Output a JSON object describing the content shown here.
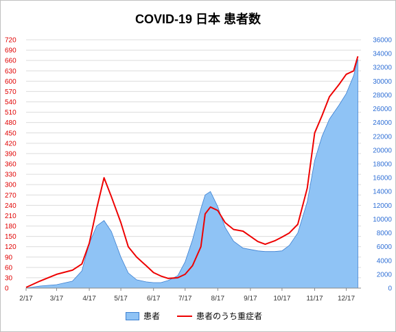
{
  "chart_data": {
    "type": "area",
    "title": "COVID-19 日本 患者数",
    "x_ticks": [
      "2/17",
      "3/17",
      "4/17",
      "5/17",
      "6/17",
      "7/17",
      "8/17",
      "9/17",
      "10/17",
      "11/17",
      "12/17"
    ],
    "y_left": {
      "ticks": [
        0,
        30,
        60,
        90,
        120,
        150,
        180,
        210,
        240,
        270,
        300,
        330,
        360,
        390,
        420,
        450,
        480,
        510,
        540,
        570,
        600,
        630,
        660,
        690,
        720
      ],
      "ylim": [
        0,
        720
      ]
    },
    "y_right": {
      "ticks": [
        0,
        2000,
        4000,
        6000,
        8000,
        10000,
        12000,
        14000,
        16000,
        18000,
        20000,
        22000,
        24000,
        26000,
        28000,
        30000,
        32000,
        34000,
        36000
      ],
      "ylim": [
        0,
        36000
      ]
    },
    "grid": true,
    "legend_position": "bottom",
    "series": [
      {
        "name": "患者",
        "axis": "right",
        "type": "area",
        "color": "#8fc3f5",
        "edge_color": "#3b7fd1",
        "x": [
          "2/17",
          "3/1",
          "3/17",
          "4/1",
          "4/10",
          "4/17",
          "4/24",
          "5/1",
          "5/8",
          "5/17",
          "5/24",
          "6/1",
          "6/10",
          "6/17",
          "6/24",
          "7/1",
          "7/10",
          "7/17",
          "7/24",
          "8/1",
          "8/5",
          "8/10",
          "8/17",
          "8/24",
          "9/1",
          "9/10",
          "9/17",
          "9/24",
          "10/1",
          "10/10",
          "10/17",
          "10/24",
          "11/1",
          "11/10",
          "11/17",
          "11/24",
          "12/1",
          "12/10",
          "12/17",
          "12/24",
          "12/28"
        ],
        "y": [
          0,
          300,
          500,
          1000,
          2500,
          6500,
          9000,
          9800,
          8200,
          4500,
          2200,
          1200,
          900,
          800,
          800,
          1100,
          1800,
          3800,
          7000,
          11500,
          13500,
          14000,
          11800,
          8800,
          6800,
          5800,
          5600,
          5400,
          5300,
          5300,
          5400,
          6200,
          8000,
          12500,
          18500,
          22000,
          24500,
          26500,
          28200,
          30800,
          33200
        ]
      },
      {
        "name": "患者のうち重症者",
        "axis": "left",
        "type": "line",
        "color": "#ee0000",
        "x": [
          "2/17",
          "3/1",
          "3/17",
          "4/1",
          "4/10",
          "4/17",
          "4/24",
          "5/1",
          "5/8",
          "5/17",
          "5/24",
          "6/1",
          "6/10",
          "6/17",
          "6/24",
          "7/1",
          "7/10",
          "7/17",
          "7/24",
          "8/1",
          "8/5",
          "8/10",
          "8/17",
          "8/24",
          "9/1",
          "9/10",
          "9/17",
          "9/24",
          "10/1",
          "10/10",
          "10/17",
          "10/24",
          "11/1",
          "11/10",
          "11/17",
          "11/24",
          "12/1",
          "12/10",
          "12/17",
          "12/24",
          "12/28"
        ],
        "y": [
          2,
          20,
          40,
          52,
          70,
          130,
          230,
          320,
          265,
          190,
          120,
          90,
          65,
          45,
          35,
          28,
          30,
          40,
          65,
          120,
          215,
          235,
          225,
          190,
          170,
          165,
          150,
          135,
          127,
          137,
          148,
          160,
          185,
          290,
          450,
          500,
          555,
          590,
          620,
          630,
          672
        ]
      }
    ]
  }
}
